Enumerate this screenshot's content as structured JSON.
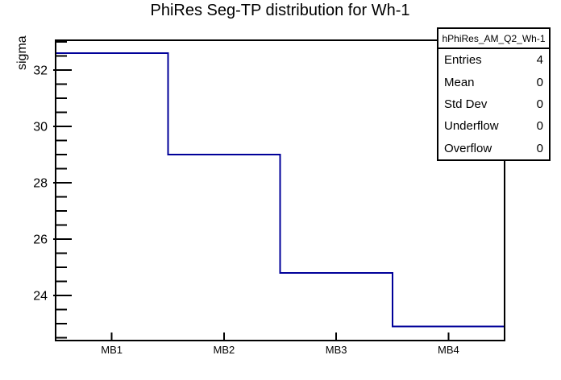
{
  "chart_data": {
    "type": "line",
    "style": "histogram-step",
    "title": "PhiRes Seg-TP distribution for Wh-1",
    "categories": [
      "MB1",
      "MB2",
      "MB3",
      "MB4"
    ],
    "values": [
      32.6,
      29.0,
      24.8,
      22.9
    ],
    "xlabel": "",
    "ylabel": "sigma",
    "ylim": [
      22.4,
      33.06
    ],
    "yticks": [
      24,
      26,
      28,
      30,
      32
    ],
    "minor_tick_step": 0.5,
    "line_color": "#000099",
    "frame_color": "#000000",
    "grid": false,
    "legend": "none"
  },
  "stats_box": {
    "header": "hPhiRes_AM_Q2_Wh-1",
    "rows": [
      {
        "label": "Entries",
        "value": "4"
      },
      {
        "label": "Mean",
        "value": "0"
      },
      {
        "label": "Std Dev",
        "value": "0"
      },
      {
        "label": "Underflow",
        "value": "0"
      },
      {
        "label": "Overflow",
        "value": "0"
      }
    ]
  }
}
